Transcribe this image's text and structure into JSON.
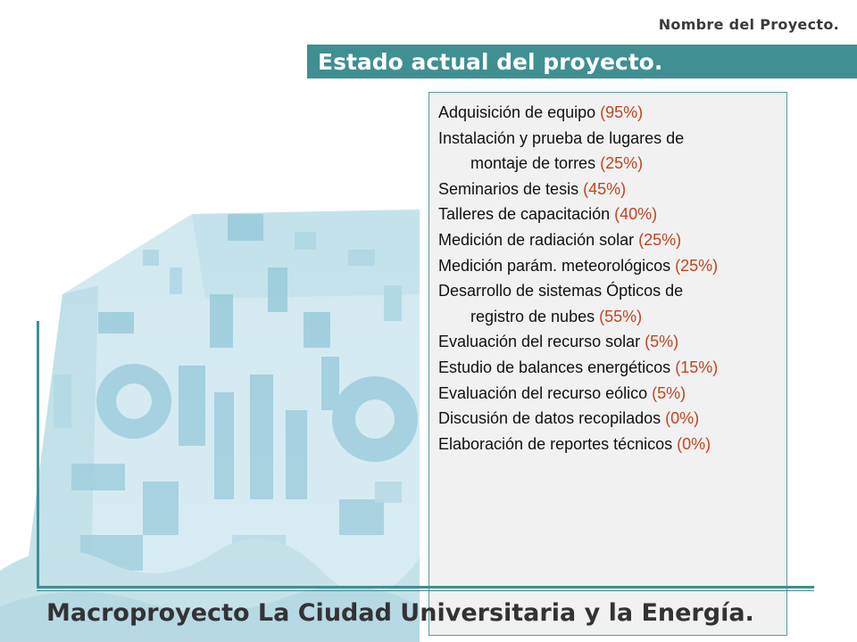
{
  "header": {
    "project_name": "Nombre del Proyecto.",
    "title": "Estado actual del proyecto."
  },
  "items": [
    {
      "text": "Adquisición de equipo",
      "pct": "(95%)"
    },
    {
      "text": "Instalación y prueba de lugares de",
      "cont": "montaje de torres",
      "pct": "(25%)"
    },
    {
      "text": "Seminarios de tesis",
      "pct": "(45%)"
    },
    {
      "text": "Talleres de capacitación",
      "pct": "(40%)"
    },
    {
      "text": "Medición de radiación solar",
      "pct": "(25%)"
    },
    {
      "text": "Medición parám. meteorológicos",
      "pct": "(25%)"
    },
    {
      "text": "Desarrollo de sistemas Ópticos de",
      "cont": "registro de nubes",
      "pct": "(55%)"
    },
    {
      "text": "Evaluación del recurso solar",
      "pct": "(5%)"
    },
    {
      "text": "Estudio de balances energéticos",
      "pct": "(15%)"
    },
    {
      "text": "Evaluación del recurso eólico",
      "pct": "(5%)"
    },
    {
      "text": "Discusión de datos recopilados",
      "pct": "(0%)"
    },
    {
      "text": "Elaboración de reportes técnicos",
      "pct": "(0%)"
    }
  ],
  "footer": {
    "title": "Macroproyecto La Ciudad Universitaria y la Energía."
  },
  "colors": {
    "accent": "#3f8f93",
    "percent": "#c24420",
    "mural": "#9fd0df"
  }
}
